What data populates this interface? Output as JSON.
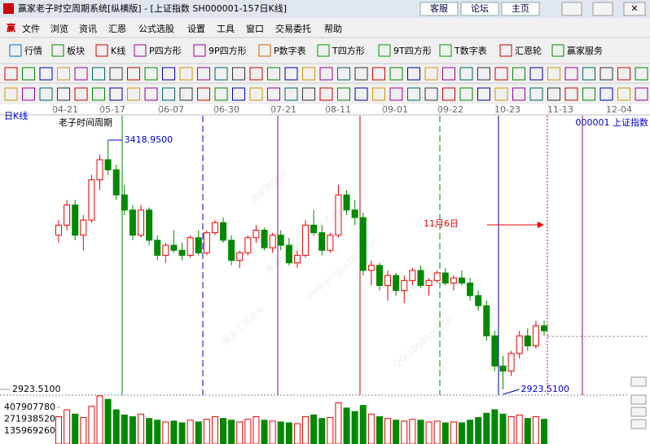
{
  "window": {
    "title": "赢家老子时空周期系统[纵横版] - [上证指数  SH000001-157日K线]",
    "links": [
      "客服",
      "论坛",
      "主页"
    ]
  },
  "menu": [
    "文件",
    "浏览",
    "资讯",
    "汇恩",
    "公式选股",
    "设置",
    "工具",
    "窗口",
    "交易委托",
    "帮助"
  ],
  "toolbar": [
    "行情",
    "板块",
    "K线",
    "P四方形",
    "9P四方形",
    "P数字表",
    "T四方形",
    "9T四方形",
    "T数字表",
    "汇恩轮",
    "赢家服务"
  ],
  "chart_data": {
    "type": "candlestick",
    "label": "日K线",
    "indicator": "老子时间周期",
    "symbol": "000001  上证指数",
    "date_labels": [
      "04-21",
      "05-17",
      "06-07",
      "06-30",
      "07-21",
      "08-11",
      "09-01",
      "09-22",
      "10-23",
      "11-13",
      "12-04"
    ],
    "ylim": [
      2923.51,
      3418.95
    ],
    "high_label": {
      "value": 3418.95,
      "label": "3418.9500"
    },
    "low_label": {
      "value": 2923.51,
      "label": "2923.5100"
    },
    "yticks": [
      {
        "value": 2923.51,
        "label": "2923.5100"
      }
    ],
    "volume_ticks": [
      407907780,
      271938520,
      135969260
    ],
    "annotation": "11月6日",
    "watermarks": [
      "赢家财富网",
      "赢家分析软件 汇恩工具软件",
      "www.yingjia360.com",
      "赢家汇恩软件",
      "QQ:1000000360"
    ],
    "candles": [
      [
        3230,
        3260,
        3215,
        3250
      ],
      [
        3250,
        3300,
        3240,
        3290
      ],
      [
        3290,
        3300,
        3220,
        3230
      ],
      [
        3230,
        3270,
        3200,
        3260
      ],
      [
        3260,
        3350,
        3255,
        3340
      ],
      [
        3340,
        3390,
        3320,
        3380
      ],
      [
        3380,
        3418.95,
        3350,
        3360
      ],
      [
        3360,
        3370,
        3300,
        3310
      ],
      [
        3310,
        3330,
        3270,
        3280
      ],
      [
        3280,
        3290,
        3220,
        3230
      ],
      [
        3230,
        3290,
        3225,
        3280
      ],
      [
        3280,
        3285,
        3210,
        3220
      ],
      [
        3220,
        3230,
        3180,
        3190
      ],
      [
        3190,
        3215,
        3175,
        3210
      ],
      [
        3210,
        3240,
        3195,
        3200
      ],
      [
        3200,
        3215,
        3180,
        3190
      ],
      [
        3190,
        3230,
        3185,
        3225
      ],
      [
        3225,
        3240,
        3190,
        3195
      ],
      [
        3195,
        3240,
        3190,
        3235
      ],
      [
        3235,
        3260,
        3230,
        3255
      ],
      [
        3255,
        3265,
        3215,
        3220
      ],
      [
        3220,
        3230,
        3170,
        3180
      ],
      [
        3180,
        3200,
        3165,
        3195
      ],
      [
        3195,
        3230,
        3190,
        3225
      ],
      [
        3225,
        3250,
        3215,
        3240
      ],
      [
        3240,
        3245,
        3200,
        3205
      ],
      [
        3205,
        3235,
        3195,
        3230
      ],
      [
        3230,
        3240,
        3200,
        3210
      ],
      [
        3210,
        3225,
        3170,
        3175
      ],
      [
        3175,
        3200,
        3165,
        3190
      ],
      [
        3190,
        3260,
        3185,
        3250
      ],
      [
        3250,
        3280,
        3230,
        3235
      ],
      [
        3235,
        3250,
        3190,
        3200
      ],
      [
        3200,
        3235,
        3195,
        3230
      ],
      [
        3230,
        3330,
        3225,
        3310
      ],
      [
        3310,
        3320,
        3270,
        3280
      ],
      [
        3280,
        3300,
        3250,
        3265
      ],
      [
        3265,
        3275,
        3150,
        3160
      ],
      [
        3160,
        3180,
        3130,
        3170
      ],
      [
        3170,
        3175,
        3120,
        3130
      ],
      [
        3130,
        3160,
        3100,
        3150
      ],
      [
        3150,
        3155,
        3110,
        3120
      ],
      [
        3120,
        3150,
        3095,
        3140
      ],
      [
        3140,
        3165,
        3130,
        3160
      ],
      [
        3160,
        3170,
        3125,
        3130
      ],
      [
        3130,
        3145,
        3110,
        3140
      ],
      [
        3140,
        3160,
        3135,
        3155
      ],
      [
        3155,
        3165,
        3130,
        3135
      ],
      [
        3135,
        3150,
        3120,
        3145
      ],
      [
        3145,
        3160,
        3130,
        3135
      ],
      [
        3135,
        3145,
        3100,
        3110
      ],
      [
        3110,
        3120,
        3080,
        3090
      ],
      [
        3090,
        3100,
        3020,
        3030
      ],
      [
        3030,
        3040,
        2960,
        2970
      ],
      [
        2970,
        2990,
        2923.51,
        2960
      ],
      [
        2960,
        3000,
        2950,
        2995
      ],
      [
        2995,
        3040,
        2985,
        3030
      ],
      [
        3030,
        3045,
        3000,
        3010
      ],
      [
        3010,
        3060,
        3005,
        3050
      ],
      [
        3050,
        3060,
        3030,
        3040
      ]
    ],
    "volumes": [
      300000000,
      380000000,
      330000000,
      290000000,
      420000000,
      540000000,
      500000000,
      380000000,
      320000000,
      300000000,
      330000000,
      280000000,
      260000000,
      240000000,
      250000000,
      230000000,
      260000000,
      240000000,
      270000000,
      300000000,
      280000000,
      260000000,
      240000000,
      270000000,
      300000000,
      260000000,
      250000000,
      240000000,
      230000000,
      220000000,
      300000000,
      320000000,
      280000000,
      290000000,
      460000000,
      400000000,
      360000000,
      430000000,
      330000000,
      300000000,
      280000000,
      260000000,
      250000000,
      270000000,
      260000000,
      240000000,
      250000000,
      230000000,
      240000000,
      230000000,
      260000000,
      290000000,
      340000000,
      380000000,
      330000000,
      300000000,
      320000000,
      280000000,
      300000000,
      270000000
    ]
  }
}
